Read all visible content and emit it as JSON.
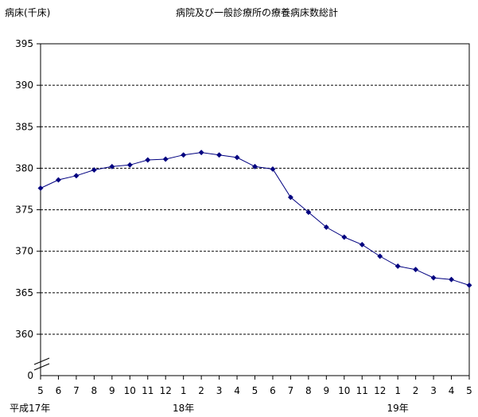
{
  "chart_data": {
    "type": "line",
    "title": "病院及び一般診療所の療養病床数総計",
    "ylabel": "病床(千床)",
    "ylim": [
      360,
      395
    ],
    "yticks": [
      "395",
      "390",
      "385",
      "380",
      "375",
      "370",
      "365",
      "360"
    ],
    "y_zero_label": "0",
    "y_axis_break": true,
    "grid": true,
    "categories": [
      "5",
      "6",
      "7",
      "8",
      "9",
      "10",
      "11",
      "12",
      "1",
      "2",
      "3",
      "4",
      "5",
      "6",
      "7",
      "8",
      "9",
      "10",
      "11",
      "12",
      "1",
      "2",
      "3",
      "4",
      "5"
    ],
    "year_labels": [
      {
        "text": "平成17年",
        "index": 0
      },
      {
        "text": "18年",
        "index": 8
      },
      {
        "text": "19年",
        "index": 20
      }
    ],
    "series": [
      {
        "values": [
          377.6,
          378.6,
          379.1,
          379.8,
          380.2,
          380.4,
          381.0,
          381.1,
          381.6,
          381.9,
          381.6,
          381.3,
          380.2,
          379.9,
          376.5,
          374.7,
          372.9,
          371.7,
          370.8,
          369.4,
          368.2,
          367.8,
          366.8,
          366.6,
          365.9
        ]
      }
    ],
    "colors": {
      "line": "#000080",
      "marker": "#000080",
      "grid": "#000000",
      "axis": "#000000"
    }
  }
}
